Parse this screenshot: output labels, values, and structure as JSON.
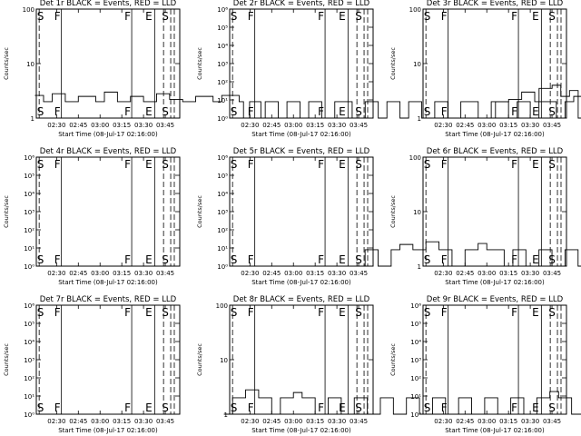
{
  "figure": {
    "x_tick_labels": [
      "02:30",
      "02:45",
      "03:00",
      "03:15",
      "03:30",
      "03:45"
    ],
    "xlabel": "Start Time (08-Jul-17 02:16:00)",
    "ylabel": "Counts/sec",
    "region_labels": [
      "S",
      "F",
      "F",
      "E",
      "S"
    ]
  },
  "chart_data": [
    {
      "type": "line",
      "title": "Det 1r BLACK = Events, RED = LLD",
      "yscale": "log",
      "ylim": [
        1,
        100
      ],
      "yticks": [
        {
          "v": 1,
          "t": "1"
        },
        {
          "v": 10,
          "t": "10"
        },
        {
          "v": 100,
          "t": "100"
        }
      ],
      "series": [
        {
          "values": [
            [
              2.25,
              2.6
            ],
            [
              2.35,
              2.0
            ],
            [
              2.45,
              2.8
            ],
            [
              2.6,
              2.0
            ],
            [
              2.75,
              2.5
            ],
            [
              2.95,
              2.0
            ],
            [
              3.05,
              3.0
            ],
            [
              3.2,
              2.0
            ],
            [
              3.35,
              2.5
            ],
            [
              3.5,
              2.0
            ],
            [
              3.65,
              2.8
            ],
            [
              3.8,
              2.2
            ],
            [
              3.95,
              2.0
            ],
            [
              4.1,
              2.5
            ],
            [
              4.3,
              2.0
            ],
            [
              4.4,
              2.6
            ],
            [
              4.6,
              2.0
            ],
            [
              4.65,
              1.0
            ],
            [
              4.72,
              2.0
            ],
            [
              4.85,
              1.0
            ],
            [
              4.9,
              2.0
            ],
            [
              5.05,
              1.0
            ],
            [
              5.15,
              2.0
            ],
            [
              5.3,
              1.0
            ],
            [
              5.4,
              2.0
            ],
            [
              5.55,
              1.0
            ],
            [
              5.7,
              2.0
            ],
            [
              5.9,
              1.0
            ],
            [
              6.05,
              2.0
            ],
            [
              6.2,
              1.0
            ],
            [
              6.3,
              2.0
            ],
            [
              6.45,
              1.0
            ],
            [
              6.55,
              2.0
            ],
            [
              6.7,
              1.0
            ],
            [
              6.85,
              2.0
            ],
            [
              7.0,
              1.0
            ],
            [
              7.15,
              2.0
            ],
            [
              7.35,
              1.0
            ],
            [
              7.5,
              2.0
            ],
            [
              7.7,
              2.2
            ],
            [
              7.85,
              3.0
            ],
            [
              8.0,
              2.0
            ],
            [
              8.05,
              3.5
            ],
            [
              8.2,
              4.0
            ],
            [
              8.3,
              2.5
            ],
            [
              8.4,
              3.2
            ],
            [
              8.5,
              1.0
            ],
            [
              8.6,
              2.0
            ]
          ]
        }
      ]
    },
    {
      "type": "line",
      "title": "Det 2r BLACK = Events, RED = LLD",
      "yscale": "log",
      "ylim": [
        1,
        1000000
      ],
      "yticks": [
        {
          "v": 1,
          "t": "10⁰"
        },
        {
          "v": 10,
          "t": "10¹"
        },
        {
          "v": 100,
          "t": "10²"
        },
        {
          "v": 1000,
          "t": "10³"
        },
        {
          "v": 10000,
          "t": "10⁴"
        },
        {
          "v": 100000,
          "t": "10⁵"
        },
        {
          "v": 1000000,
          "t": "10⁶"
        }
      ],
      "series": [
        {
          "values": []
        }
      ]
    },
    {
      "type": "line",
      "title": "Det 3r BLACK = Events, RED = LLD",
      "yscale": "log",
      "ylim": [
        1,
        100
      ],
      "yticks": [
        {
          "v": 1,
          "t": "1"
        },
        {
          "v": 10,
          "t": "10"
        },
        {
          "v": 100,
          "t": "100"
        }
      ],
      "series": [
        {
          "values": [
            [
              3.0,
              1.0
            ],
            [
              3.1,
              2.0
            ],
            [
              3.25,
              1.0
            ],
            [
              3.35,
              2.0
            ],
            [
              3.5,
              1.0
            ],
            [
              3.6,
              2.0
            ],
            [
              3.8,
              1.0
            ],
            [
              3.9,
              2.0
            ],
            [
              4.0,
              2.5
            ],
            [
              4.1,
              2.0
            ],
            [
              4.2,
              3.0
            ],
            [
              4.3,
              2.0
            ],
            [
              4.4,
              2.8
            ],
            [
              4.5,
              2.0
            ],
            [
              4.6,
              2.6
            ],
            [
              4.7,
              1.0
            ],
            [
              4.8,
              2.0
            ],
            [
              5.0,
              1.0
            ],
            [
              5.1,
              2.0
            ],
            [
              5.3,
              1.0
            ],
            [
              5.45,
              2.0
            ],
            [
              5.6,
              1.0
            ],
            [
              5.8,
              2.0
            ],
            [
              6.0,
              1.0
            ],
            [
              6.1,
              2.0
            ],
            [
              6.3,
              1.0
            ],
            [
              6.45,
              2.0
            ],
            [
              6.55,
              1.0
            ],
            [
              6.7,
              2.0
            ],
            [
              6.9,
              1.0
            ],
            [
              7.0,
              2.0
            ],
            [
              7.2,
              1.0
            ],
            [
              7.35,
              2.0
            ],
            [
              7.5,
              1.0
            ],
            [
              7.6,
              2.0
            ],
            [
              7.75,
              2.8
            ],
            [
              7.85,
              2.0
            ],
            [
              7.95,
              3.0
            ],
            [
              8.05,
              2.2
            ],
            [
              8.15,
              1.0
            ],
            [
              8.3,
              2.0
            ],
            [
              8.45,
              1.0
            ],
            [
              8.55,
              2.0
            ]
          ]
        }
      ]
    },
    {
      "type": "line",
      "title": "Det 4r BLACK = Events, RED = LLD",
      "yscale": "log",
      "ylim": [
        1,
        1000000
      ],
      "yticks": [
        {
          "v": 1,
          "t": "10⁰"
        },
        {
          "v": 10,
          "t": "10¹"
        },
        {
          "v": 100,
          "t": "10²"
        },
        {
          "v": 1000,
          "t": "10³"
        },
        {
          "v": 10000,
          "t": "10⁴"
        },
        {
          "v": 100000,
          "t": "10⁵"
        },
        {
          "v": 1000000,
          "t": "10⁶"
        }
      ],
      "series": [
        {
          "values": []
        }
      ]
    },
    {
      "type": "line",
      "title": "Det 5r BLACK = Events, RED = LLD",
      "yscale": "log",
      "ylim": [
        1,
        1000000
      ],
      "yticks": [
        {
          "v": 1,
          "t": "10⁰"
        },
        {
          "v": 10,
          "t": "10¹"
        },
        {
          "v": 100,
          "t": "10²"
        },
        {
          "v": 1000,
          "t": "10³"
        },
        {
          "v": 10000,
          "t": "10⁴"
        },
        {
          "v": 100000,
          "t": "10⁵"
        },
        {
          "v": 1000000,
          "t": "10⁶"
        }
      ],
      "series": [
        {
          "values": []
        }
      ]
    },
    {
      "type": "line",
      "title": "Det 6r BLACK = Events, RED = LLD",
      "yscale": "log",
      "ylim": [
        1,
        100
      ],
      "yticks": [
        {
          "v": 1,
          "t": "1"
        },
        {
          "v": 10,
          "t": "10"
        },
        {
          "v": 100,
          "t": "100"
        }
      ],
      "series": [
        {
          "values": [
            [
              1.5,
              1.0
            ],
            [
              1.6,
              2.0
            ],
            [
              1.75,
              1.0
            ],
            [
              1.9,
              2.0
            ],
            [
              2.0,
              2.5
            ],
            [
              2.15,
              2.0
            ],
            [
              2.3,
              2.8
            ],
            [
              2.45,
              2.0
            ],
            [
              2.6,
              1.0
            ],
            [
              2.75,
              2.0
            ],
            [
              2.9,
              2.6
            ],
            [
              3.0,
              2.0
            ],
            [
              3.2,
              1.0
            ],
            [
              3.3,
              2.0
            ],
            [
              3.45,
              1.0
            ],
            [
              3.6,
              2.0
            ],
            [
              3.75,
              1.0
            ],
            [
              3.9,
              2.0
            ],
            [
              4.05,
              1.0
            ],
            [
              4.2,
              2.0
            ],
            [
              4.35,
              1.0
            ],
            [
              4.5,
              2.0
            ],
            [
              4.65,
              1.0
            ],
            [
              4.8,
              2.0
            ],
            [
              5.0,
              1.0
            ],
            [
              5.15,
              2.0
            ],
            [
              5.3,
              1.0
            ],
            [
              5.5,
              2.0
            ],
            [
              5.65,
              1.0
            ],
            [
              5.8,
              2.0
            ],
            [
              6.0,
              1.0
            ],
            [
              6.15,
              2.0
            ],
            [
              6.3,
              1.0
            ],
            [
              6.45,
              2.0
            ],
            [
              6.6,
              1.0
            ],
            [
              6.75,
              2.0
            ],
            [
              6.9,
              1.0
            ],
            [
              7.05,
              2.0
            ],
            [
              7.2,
              1.0
            ],
            [
              7.35,
              2.0
            ],
            [
              7.5,
              2.5
            ],
            [
              7.6,
              2.0
            ],
            [
              7.7,
              3.0
            ],
            [
              7.8,
              2.2
            ],
            [
              7.9,
              2.8
            ],
            [
              8.0,
              2.0
            ],
            [
              8.1,
              1.0
            ],
            [
              8.2,
              2.0
            ],
            [
              8.3,
              1.0
            ],
            [
              8.45,
              2.0
            ]
          ]
        }
      ]
    },
    {
      "type": "line",
      "title": "Det 7r BLACK = Events, RED = LLD",
      "yscale": "log",
      "ylim": [
        1,
        1000000
      ],
      "yticks": [
        {
          "v": 1,
          "t": "10⁰"
        },
        {
          "v": 10,
          "t": "10¹"
        },
        {
          "v": 100,
          "t": "10²"
        },
        {
          "v": 1000,
          "t": "10³"
        },
        {
          "v": 10000,
          "t": "10⁴"
        },
        {
          "v": 100000,
          "t": "10⁵"
        },
        {
          "v": 1000000,
          "t": "10⁶"
        }
      ],
      "series": [
        {
          "values": []
        }
      ]
    },
    {
      "type": "line",
      "title": "Det 8r BLACK = Events, RED = LLD",
      "yscale": "log",
      "ylim": [
        1,
        100
      ],
      "yticks": [
        {
          "v": 1,
          "t": "1"
        },
        {
          "v": 10,
          "t": "10"
        },
        {
          "v": 100,
          "t": "100"
        }
      ],
      "series": [
        {
          "values": [
            [
              2.2,
              1.0
            ],
            [
              2.3,
              2.0
            ],
            [
              2.45,
              2.8
            ],
            [
              2.6,
              2.0
            ],
            [
              2.75,
              1.0
            ],
            [
              2.85,
              2.0
            ],
            [
              3.0,
              2.5
            ],
            [
              3.1,
              2.0
            ],
            [
              3.25,
              1.0
            ],
            [
              3.4,
              2.0
            ],
            [
              3.55,
              1.0
            ],
            [
              3.7,
              2.0
            ],
            [
              3.85,
              1.0
            ],
            [
              4.0,
              2.0
            ],
            [
              4.15,
              1.0
            ],
            [
              4.3,
              2.0
            ],
            [
              4.45,
              1.0
            ],
            [
              4.6,
              2.0
            ],
            [
              4.75,
              1.0
            ],
            [
              4.9,
              2.0
            ],
            [
              5.05,
              1.0
            ],
            [
              5.2,
              2.0
            ],
            [
              5.35,
              1.0
            ],
            [
              5.5,
              2.0
            ],
            [
              5.65,
              1.0
            ],
            [
              5.8,
              2.0
            ],
            [
              5.95,
              2.6
            ],
            [
              6.05,
              2.0
            ],
            [
              6.2,
              1.0
            ],
            [
              6.35,
              2.0
            ],
            [
              6.5,
              2.5
            ],
            [
              6.6,
              2.0
            ],
            [
              6.75,
              1.0
            ],
            [
              6.85,
              2.0
            ],
            [
              7.0,
              1.0
            ],
            [
              7.15,
              2.0
            ],
            [
              7.3,
              2.6
            ],
            [
              7.4,
              2.0
            ],
            [
              7.55,
              1.0
            ]
          ]
        }
      ]
    },
    {
      "type": "line",
      "title": "Det 9r BLACK = Events, RED = LLD",
      "yscale": "log",
      "ylim": [
        1,
        1000000
      ],
      "yticks": [
        {
          "v": 1,
          "t": "10⁰"
        },
        {
          "v": 10,
          "t": "10¹"
        },
        {
          "v": 100,
          "t": "10²"
        },
        {
          "v": 1000,
          "t": "10³"
        },
        {
          "v": 10000,
          "t": "10⁴"
        },
        {
          "v": 100000,
          "t": "10⁵"
        },
        {
          "v": 1000000,
          "t": "10⁶"
        }
      ],
      "series": [
        {
          "values": []
        }
      ]
    }
  ]
}
